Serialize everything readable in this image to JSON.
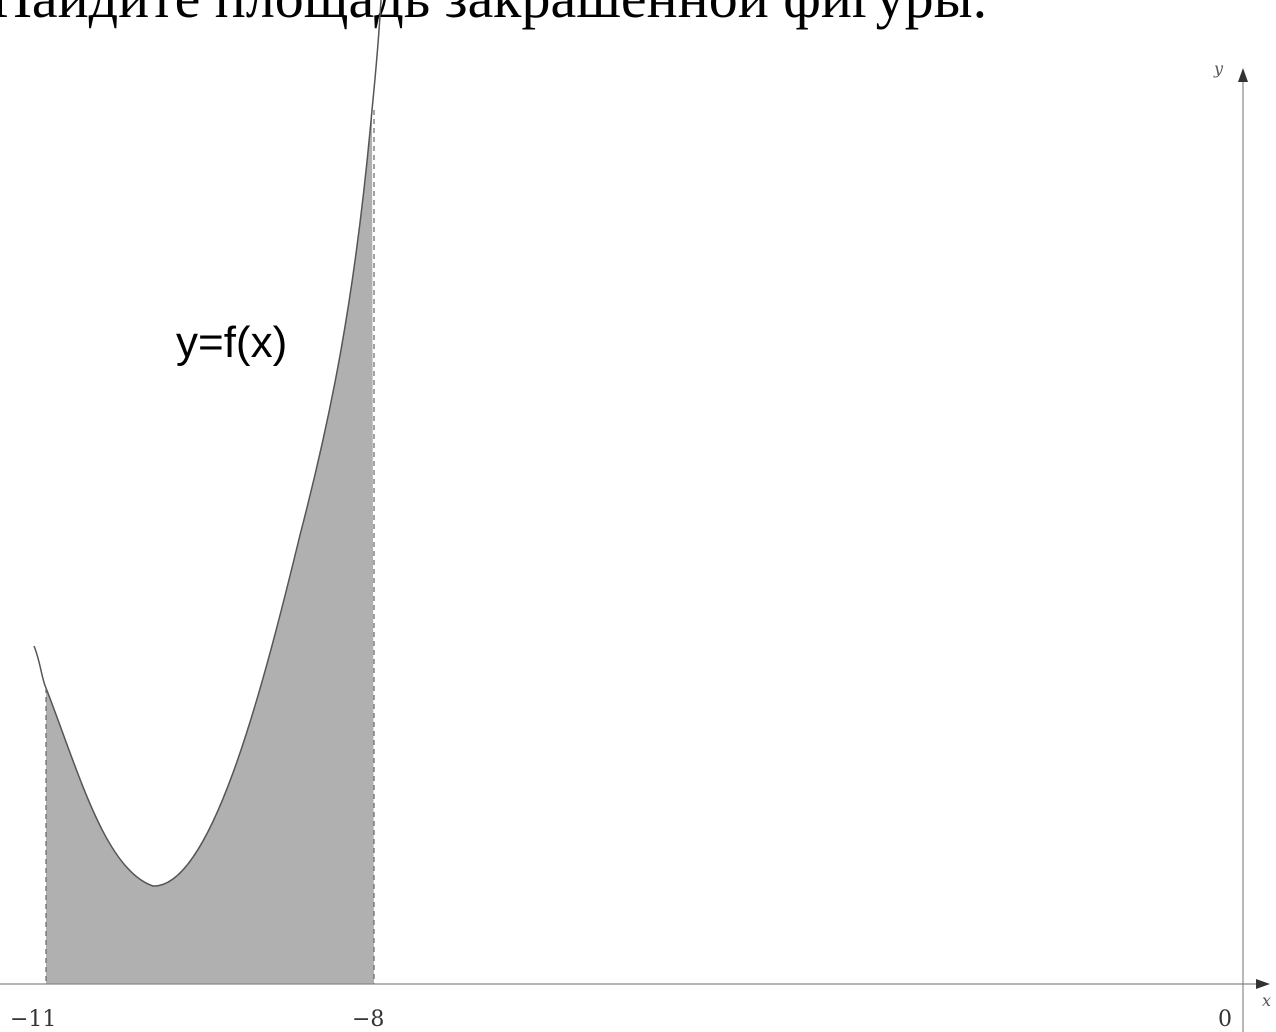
{
  "title": "Найдите площадь закрашенной фигуры.",
  "curve_label": "y=f(x)",
  "axes": {
    "x_letter": "x",
    "y_letter": "y"
  },
  "ticks": {
    "x_minus_11": "−11",
    "x_minus_8": "−8",
    "origin": "0"
  },
  "colors": {
    "shaded_region": "#b0b0b0",
    "curve": "#555555",
    "axis": "#888888"
  }
}
